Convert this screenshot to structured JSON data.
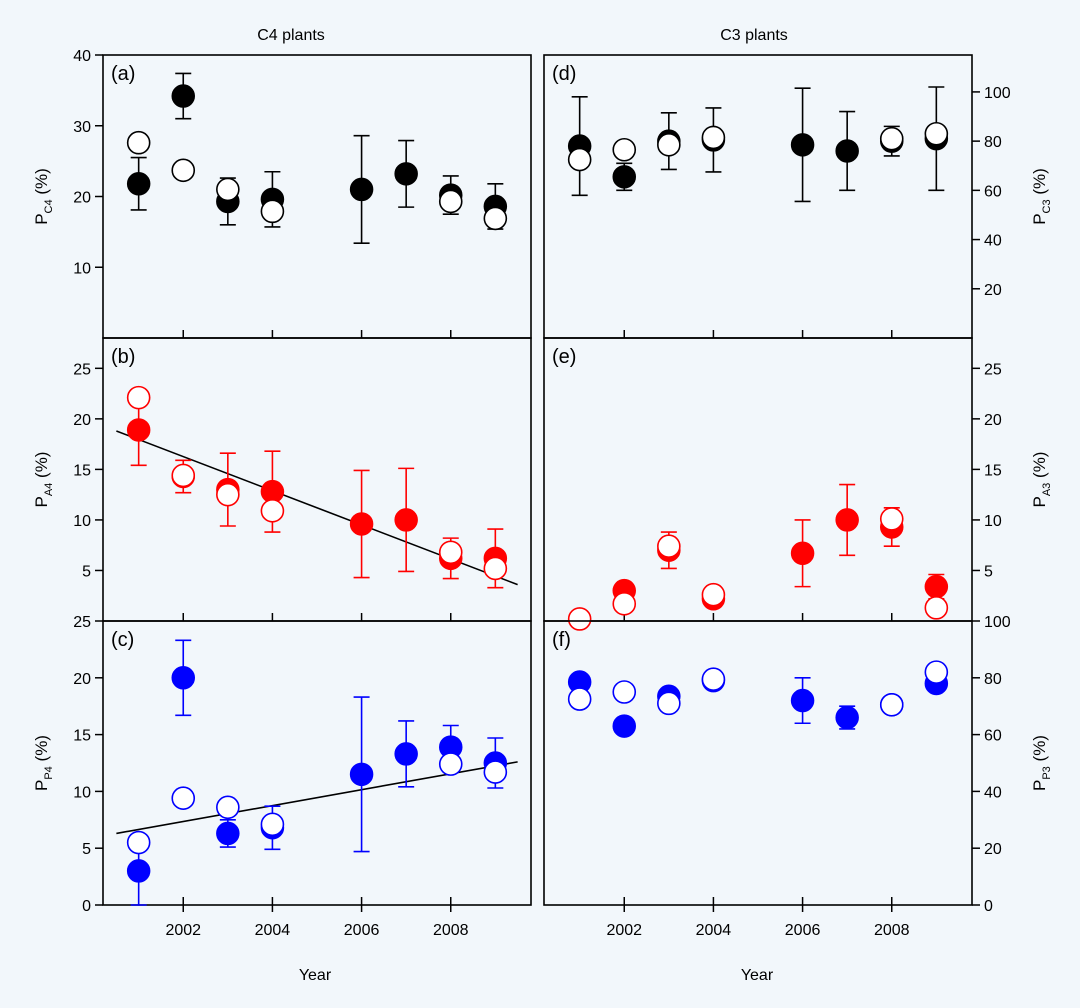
{
  "background_color": "#f2f7fb",
  "colors": {
    "black": "#000000",
    "red": "#ff0000",
    "blue": "#0000ff"
  },
  "chart_data": {
    "type": "scatter",
    "xlabel": "Year",
    "x_range": [
      2000.2,
      2009.8
    ],
    "x_ticks": [
      "2002",
      "2004",
      "2006",
      "2008"
    ],
    "column_titles": [
      "C4 plants",
      "C3 plants"
    ],
    "legend": "none",
    "panels": [
      {
        "id": "a",
        "label": "(a)",
        "column": "C4 plants",
        "row": 0,
        "ylabel_main": "P",
        "ylabel_sub": "C4",
        "ylabel_tail": " (%)",
        "y_side": "left",
        "ylim": [
          0,
          40
        ],
        "y_ticks": [
          "10",
          "20",
          "30",
          "40"
        ],
        "color": "#000000",
        "filled": {
          "x": [
            2001,
            2002,
            2003,
            2004,
            2006,
            2007,
            2008,
            2009
          ],
          "y": [
            21.8,
            34.2,
            19.3,
            19.6,
            21.0,
            23.2,
            20.2,
            18.6
          ],
          "err": [
            3.7,
            3.2,
            3.3,
            3.9,
            7.6,
            4.7,
            2.7,
            3.2
          ]
        },
        "open": {
          "x": [
            2001,
            2002,
            2003,
            2004,
            2008,
            2009
          ],
          "y": [
            27.6,
            23.7,
            21.0,
            17.9,
            19.3,
            16.9
          ]
        },
        "fit": null
      },
      {
        "id": "b",
        "label": "(b)",
        "column": "C4 plants",
        "row": 1,
        "ylabel_main": "P",
        "ylabel_sub": "A4",
        "ylabel_tail": " (%)",
        "y_side": "left",
        "ylim": [
          0,
          28
        ],
        "y_ticks": [
          "5",
          "10",
          "15",
          "20",
          "25"
        ],
        "color": "#ff0000",
        "filled": {
          "x": [
            2001,
            2002,
            2003,
            2004,
            2006,
            2007,
            2008,
            2009
          ],
          "y": [
            18.9,
            14.3,
            13.0,
            12.8,
            9.6,
            10.0,
            6.2,
            6.2
          ],
          "err": [
            3.5,
            1.6,
            3.6,
            4.0,
            5.3,
            5.1,
            2.0,
            2.9
          ]
        },
        "open": {
          "x": [
            2001,
            2002,
            2003,
            2004,
            2008,
            2009
          ],
          "y": [
            22.1,
            14.4,
            12.5,
            10.9,
            6.8,
            5.2
          ]
        },
        "fit": {
          "x": [
            2000.5,
            2009.5
          ],
          "y": [
            18.8,
            3.6
          ]
        }
      },
      {
        "id": "c",
        "label": "(c)",
        "column": "C4 plants",
        "row": 2,
        "ylabel_main": "P",
        "ylabel_sub": "P4",
        "ylabel_tail": " (%)",
        "y_side": "left",
        "ylim": [
          0,
          25
        ],
        "y_ticks": [
          "0",
          "5",
          "10",
          "15",
          "20",
          "25"
        ],
        "color": "#0000ff",
        "filled": {
          "x": [
            2001,
            2002,
            2003,
            2004,
            2006,
            2007,
            2008,
            2009
          ],
          "y": [
            3.0,
            20.0,
            6.3,
            6.8,
            11.5,
            13.3,
            13.9,
            12.5
          ],
          "err": [
            3.0,
            3.3,
            1.2,
            1.9,
            6.8,
            2.9,
            1.9,
            2.2
          ]
        },
        "open": {
          "x": [
            2001,
            2002,
            2003,
            2004,
            2008,
            2009
          ],
          "y": [
            5.5,
            9.4,
            8.6,
            7.1,
            12.4,
            11.7
          ]
        },
        "fit": {
          "x": [
            2000.5,
            2009.5
          ],
          "y": [
            6.3,
            12.6
          ]
        }
      },
      {
        "id": "d",
        "label": "(d)",
        "column": "C3 plants",
        "row": 0,
        "ylabel_main": "P",
        "ylabel_sub": "C3",
        "ylabel_tail": " (%)",
        "y_side": "right",
        "ylim": [
          0,
          115
        ],
        "y_ticks": [
          "20",
          "40",
          "60",
          "80",
          "100"
        ],
        "color": "#000000",
        "filled": {
          "x": [
            2001,
            2002,
            2003,
            2004,
            2006,
            2007,
            2008,
            2009
          ],
          "y": [
            78.0,
            65.5,
            80.0,
            80.5,
            78.5,
            76.0,
            80.0,
            81.0
          ],
          "err": [
            20.0,
            5.5,
            11.5,
            13.0,
            23.0,
            16.0,
            6.0,
            21.0
          ]
        },
        "open": {
          "x": [
            2001,
            2002,
            2003,
            2004,
            2008,
            2009
          ],
          "y": [
            72.5,
            76.5,
            78.5,
            81.5,
            81.0,
            83.0
          ]
        },
        "fit": null
      },
      {
        "id": "e",
        "label": "(e)",
        "column": "C3 plants",
        "row": 1,
        "ylabel_main": "P",
        "ylabel_sub": "A3",
        "ylabel_tail": " (%)",
        "y_side": "right",
        "ylim": [
          0,
          28
        ],
        "y_ticks": [
          "5",
          "10",
          "15",
          "20",
          "25"
        ],
        "color": "#ff0000",
        "filled": {
          "x": [
            2002,
            2003,
            2004,
            2006,
            2007,
            2008,
            2009
          ],
          "y": [
            3.0,
            7.0,
            2.2,
            6.7,
            10.0,
            9.3,
            3.4
          ],
          "err": [
            0.6,
            1.8,
            0.5,
            3.3,
            3.5,
            1.9,
            1.2
          ]
        },
        "open": {
          "x": [
            2001,
            2002,
            2003,
            2004,
            2008,
            2009
          ],
          "y": [
            0.2,
            1.7,
            7.4,
            2.6,
            10.1,
            1.3
          ]
        },
        "fit": null
      },
      {
        "id": "f",
        "label": "(f)",
        "column": "C3 plants",
        "row": 2,
        "ylabel_main": "P",
        "ylabel_sub": "P3",
        "ylabel_tail": " (%)",
        "y_side": "right",
        "ylim": [
          0,
          100
        ],
        "y_ticks": [
          "0",
          "20",
          "40",
          "60",
          "80",
          "100"
        ],
        "color": "#0000ff",
        "filled": {
          "x": [
            2001,
            2002,
            2003,
            2004,
            2006,
            2007,
            2008,
            2009
          ],
          "y": [
            78.5,
            63.0,
            73.5,
            79.0,
            72.0,
            66.0,
            70.5,
            78.0
          ],
          "err": [
            0,
            0,
            0,
            0,
            8.0,
            4.0,
            0,
            0
          ]
        },
        "open": {
          "x": [
            2001,
            2002,
            2003,
            2004,
            2008,
            2009
          ],
          "y": [
            72.5,
            75.0,
            71.0,
            79.5,
            70.5,
            82.0
          ]
        },
        "fit": null
      }
    ]
  }
}
